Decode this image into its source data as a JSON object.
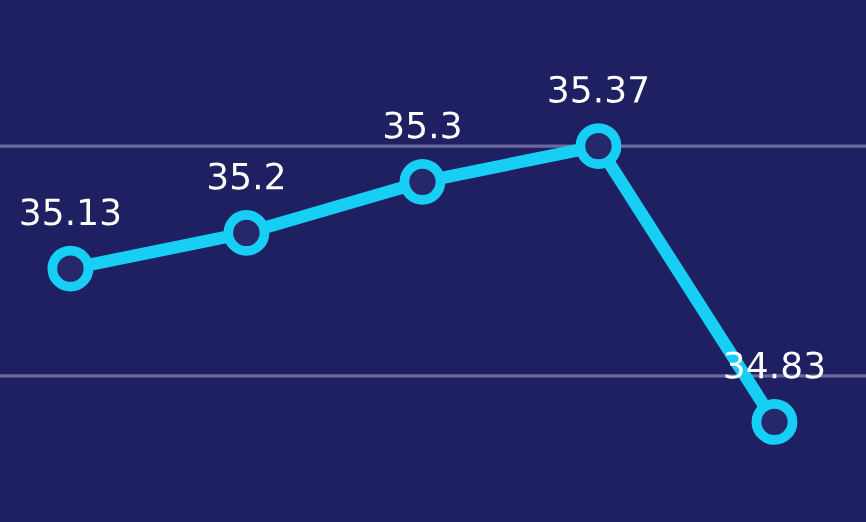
{
  "chart_data": {
    "type": "line",
    "categories": [
      null,
      null,
      null,
      null,
      null
    ],
    "series": [
      {
        "color": "#17cff5",
        "values": [
          35.13,
          35.2,
          35.3,
          35.37,
          34.83
        ]
      }
    ],
    "ylim": [
      34.634,
      35.656
    ],
    "ref_lines": [
      {
        "axis": "y",
        "value": 35.37,
        "color": "#6a6a9c"
      },
      {
        "axis": "y",
        "value": 34.92,
        "color": "#6a6a9c"
      }
    ],
    "data_labels": true,
    "marker": "circle",
    "line_style": "solid"
  }
}
